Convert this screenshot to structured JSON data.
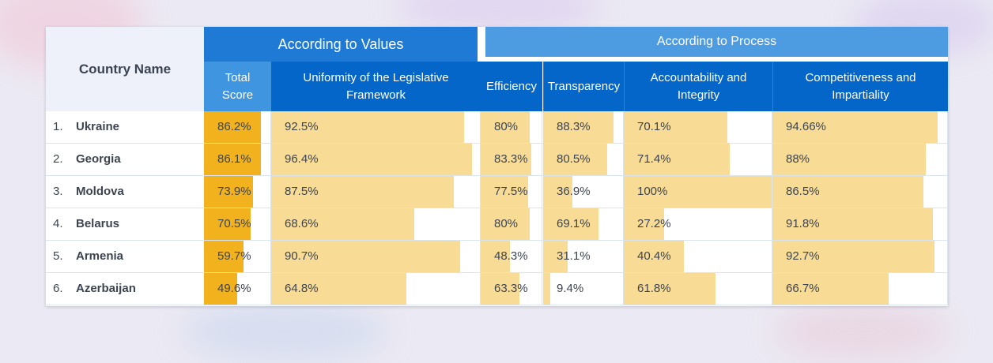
{
  "colors": {
    "total_bar": "#f2b21d",
    "metric_bar": "#f8dc95",
    "values_header": "#1f7ad6",
    "process_header": "#4d9be1",
    "subheader_dark": "#0466c9",
    "subheader_total": "#3f95e0"
  },
  "header": {
    "country_name": "Country Name",
    "according_values": "According to Values",
    "according_process": "According to Process",
    "columns": [
      {
        "key": "total",
        "label": "Total\nScore"
      },
      {
        "key": "uniformity",
        "label": "Uniformity of the Legislative Framework"
      },
      {
        "key": "efficiency",
        "label": "Efficiency"
      },
      {
        "key": "transparency",
        "label": "Transparency"
      },
      {
        "key": "accountability",
        "label": "Accountability and Integrity"
      },
      {
        "key": "competitiveness",
        "label": "Competitiveness and Impartiality"
      }
    ]
  },
  "rows": [
    {
      "rank": "1.",
      "country": "Ukraine",
      "values": [
        "86.2%",
        "92.5%",
        "80%",
        "88.3%",
        "70.1%",
        "94.66%"
      ],
      "fractions": [
        0.862,
        0.925,
        0.8,
        0.883,
        0.701,
        0.9466
      ]
    },
    {
      "rank": "2.",
      "country": "Georgia",
      "values": [
        "86.1%",
        "96.4%",
        "83.3%",
        "80.5%",
        "71.4%",
        "88%"
      ],
      "fractions": [
        0.861,
        0.964,
        0.833,
        0.805,
        0.714,
        0.88
      ]
    },
    {
      "rank": "3.",
      "country": "Moldova",
      "values": [
        "73.9%",
        "87.5%",
        "77.5%",
        "36.9%",
        "100%",
        "86.5%"
      ],
      "fractions": [
        0.739,
        0.875,
        0.775,
        0.369,
        1.0,
        0.865
      ]
    },
    {
      "rank": "4.",
      "country": "Belarus",
      "values": [
        "70.5%",
        "68.6%",
        "80%",
        "69.1%",
        "27.2%",
        "91.8%"
      ],
      "fractions": [
        0.705,
        0.686,
        0.8,
        0.691,
        0.272,
        0.918
      ]
    },
    {
      "rank": "5.",
      "country": "Armenia",
      "values": [
        "59.7%",
        "90.7%",
        "48.3%",
        "31.1%",
        "40.4%",
        "92.7%"
      ],
      "fractions": [
        0.597,
        0.907,
        0.483,
        0.311,
        0.404,
        0.927
      ]
    },
    {
      "rank": "6.",
      "country": "Azerbaijan",
      "values": [
        "49.6%",
        "64.8%",
        "63.3%",
        "9.4%",
        "61.8%",
        "66.7%"
      ],
      "fractions": [
        0.496,
        0.648,
        0.633,
        0.094,
        0.618,
        0.667
      ]
    }
  ]
}
